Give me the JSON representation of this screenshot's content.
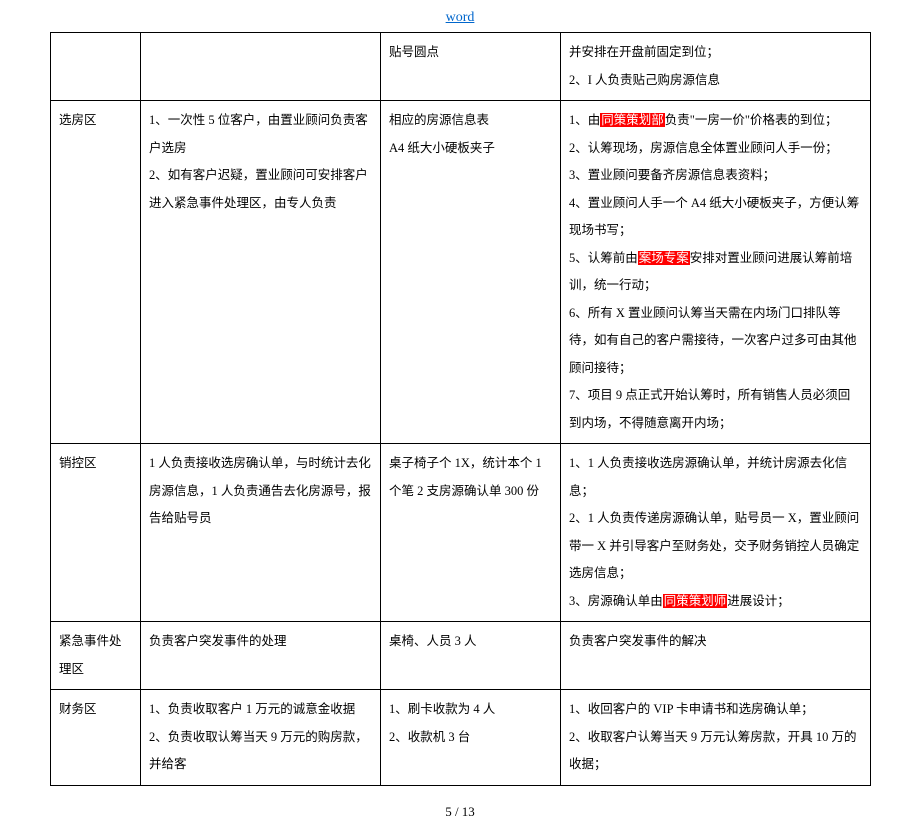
{
  "header": {
    "title": "word"
  },
  "footer": {
    "page": "5 / 13"
  },
  "rows": [
    {
      "c1": "",
      "c2": "",
      "c3": "贴号圆点",
      "c4_parts": [
        {
          "t": "并安排在开盘前固定到位；"
        },
        {
          "br": true
        },
        {
          "t": "2、I 人负责贴己购房源信息"
        }
      ]
    },
    {
      "c1": "选房区",
      "c2_parts": [
        {
          "t": "1、一次性 5 位客户，由置业顾问负责客户选房"
        },
        {
          "br": true
        },
        {
          "t": "2、如有客户迟疑，置业顾问可安排客户进入紧急事件处理区，由专人负责"
        }
      ],
      "c3_parts": [
        {
          "t": "相应的房源信息表"
        },
        {
          "br": true
        },
        {
          "t": "A4 纸大小硬板夹子"
        }
      ],
      "c4_parts": [
        {
          "t": "1、由"
        },
        {
          "hl": "同策策划部"
        },
        {
          "t": "负责\"一房一价\"价格表的到位；"
        },
        {
          "br": true
        },
        {
          "t": "2、认筹现场，房源信息全体置业顾问人手一份；"
        },
        {
          "br": true
        },
        {
          "t": "3、置业顾问要备齐房源信息表资料；"
        },
        {
          "br": true
        },
        {
          "t": "4、置业顾问人手一个 A4 纸大小硬板夹子，方便认筹现场书写；"
        },
        {
          "br": true
        },
        {
          "t": "5、认筹前由"
        },
        {
          "hl": "案场专案"
        },
        {
          "t": "安排对置业顾问进展认筹前培训，统一行动；"
        },
        {
          "br": true
        },
        {
          "t": "6、所有 X 置业顾问认筹当天需在内场门口排队等待，如有自己的客户需接待，一次客户过多可由其他顾问接待；"
        },
        {
          "br": true
        },
        {
          "t": "7、项目 9 点正式开始认筹时，所有销售人员必须回到内场，不得随意离开内场；"
        }
      ]
    },
    {
      "c1": "销控区",
      "c2_parts": [
        {
          "t": "1 人负责接收选房确认单，与时统计去化房源信息，1 人负责通告去化房源号，报告给贴号员"
        }
      ],
      "c3_parts": [
        {
          "t": "桌子椅子个 1X，统计本个 1个笔 2 支房源确认单 300 份"
        }
      ],
      "c4_parts": [
        {
          "t": "1、1 人负责接收选房源确认单，并统计房源去化信息；"
        },
        {
          "br": true
        },
        {
          "t": "2、1 人负责传递房源确认单，贴号员一 X，置业顾问带一 X 并引导客户至财务处，交予财务销控人员确定选房信息；"
        },
        {
          "br": true
        },
        {
          "t": "3、房源确认单由"
        },
        {
          "hl": "同策策划师"
        },
        {
          "t": "进展设计；"
        }
      ]
    },
    {
      "c1": "紧急事件处理区",
      "c2": "负责客户突发事件的处理",
      "c3": "桌椅、人员 3 人",
      "c4": "负责客户突发事件的解决"
    },
    {
      "c1": "财务区",
      "c2_parts": [
        {
          "t": "1、负责收取客户 1 万元的诚意金收据"
        },
        {
          "br": true
        },
        {
          "t": "2、负责收取认筹当天 9 万元的购房款，并给客"
        }
      ],
      "c3_parts": [
        {
          "t": "1、刷卡收款为 4 人"
        },
        {
          "br": true
        },
        {
          "t": "2、收款机 3 台"
        }
      ],
      "c4_parts": [
        {
          "t": "1、收回客户的 VIP 卡申请书和选房确认单；"
        },
        {
          "br": true
        },
        {
          "t": "2、收取客户认筹当天 9 万元认筹房款，开具 10 万的收据；"
        }
      ]
    }
  ]
}
